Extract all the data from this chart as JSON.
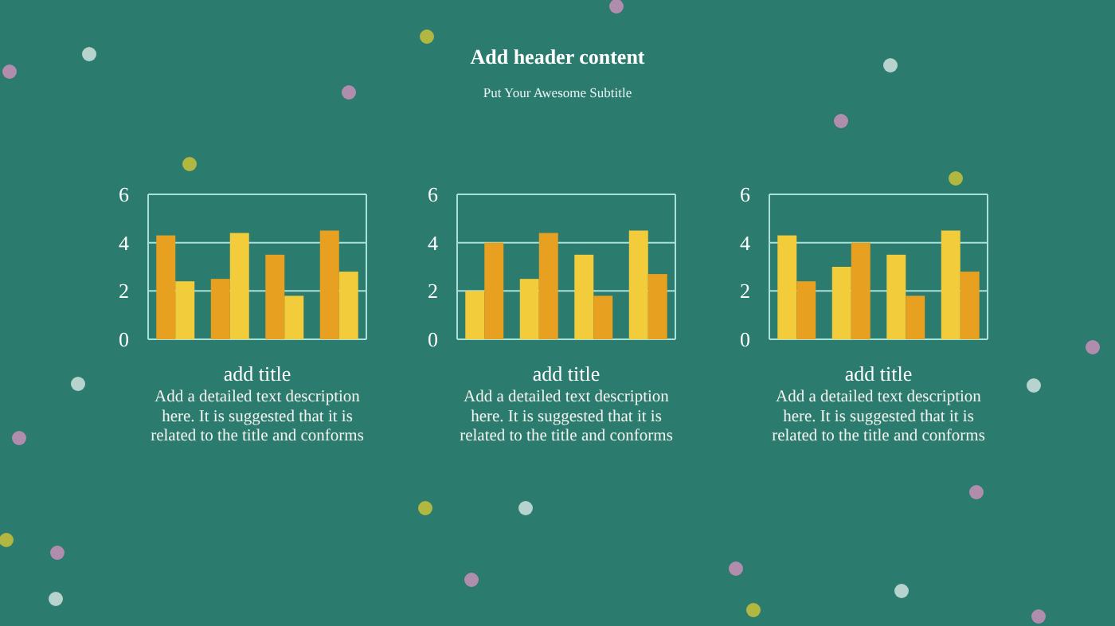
{
  "chart_data": [
    {
      "type": "other",
      "title": "Add header content",
      "subtitle": "Put Your Awesome Subtitle"
    },
    {
      "type": "bar",
      "title": "add title",
      "annotations": [
        "Add a detailed text description here. It is suggested that it is related to the title and conforms"
      ],
      "categories": [
        null,
        null,
        null,
        null
      ],
      "series": [
        {
          "color": "#e8a020",
          "values": [
            4.3,
            2.5,
            3.5,
            4.5
          ]
        },
        {
          "color": "#f2cc3a",
          "values": [
            2.4,
            4.4,
            1.8,
            2.8
          ]
        }
      ],
      "ylim": [
        0,
        6
      ],
      "yticks": [
        0,
        2,
        4,
        6
      ],
      "grid": "y"
    },
    {
      "type": "bar",
      "title": "add title",
      "annotations": [
        "Add a detailed text description here. It is suggested that it is related to the title and conforms"
      ],
      "categories": [
        null,
        null,
        null,
        null
      ],
      "series": [
        {
          "color": "#f2cc3a",
          "values": [
            2,
            2.5,
            3.5,
            4.5
          ]
        },
        {
          "color": "#e8a020",
          "values": [
            4,
            4.4,
            1.8,
            2.7
          ]
        }
      ],
      "ylim": [
        0,
        6
      ],
      "yticks": [
        0,
        2,
        4,
        6
      ],
      "grid": "y"
    },
    {
      "type": "bar",
      "title": "add title",
      "annotations": [
        "Add a detailed text description here. It is suggested that it is related to the title and conforms"
      ],
      "categories": [
        null,
        null,
        null,
        null
      ],
      "series": [
        {
          "color": "#f2cc3a",
          "values": [
            4.3,
            3,
            3.5,
            4.5
          ]
        },
        {
          "color": "#e8a020",
          "values": [
            2.4,
            4,
            1.8,
            2.8
          ]
        }
      ],
      "ylim": [
        0,
        6
      ],
      "yticks": [
        0,
        2,
        4,
        6
      ],
      "grid": "y"
    }
  ]
}
